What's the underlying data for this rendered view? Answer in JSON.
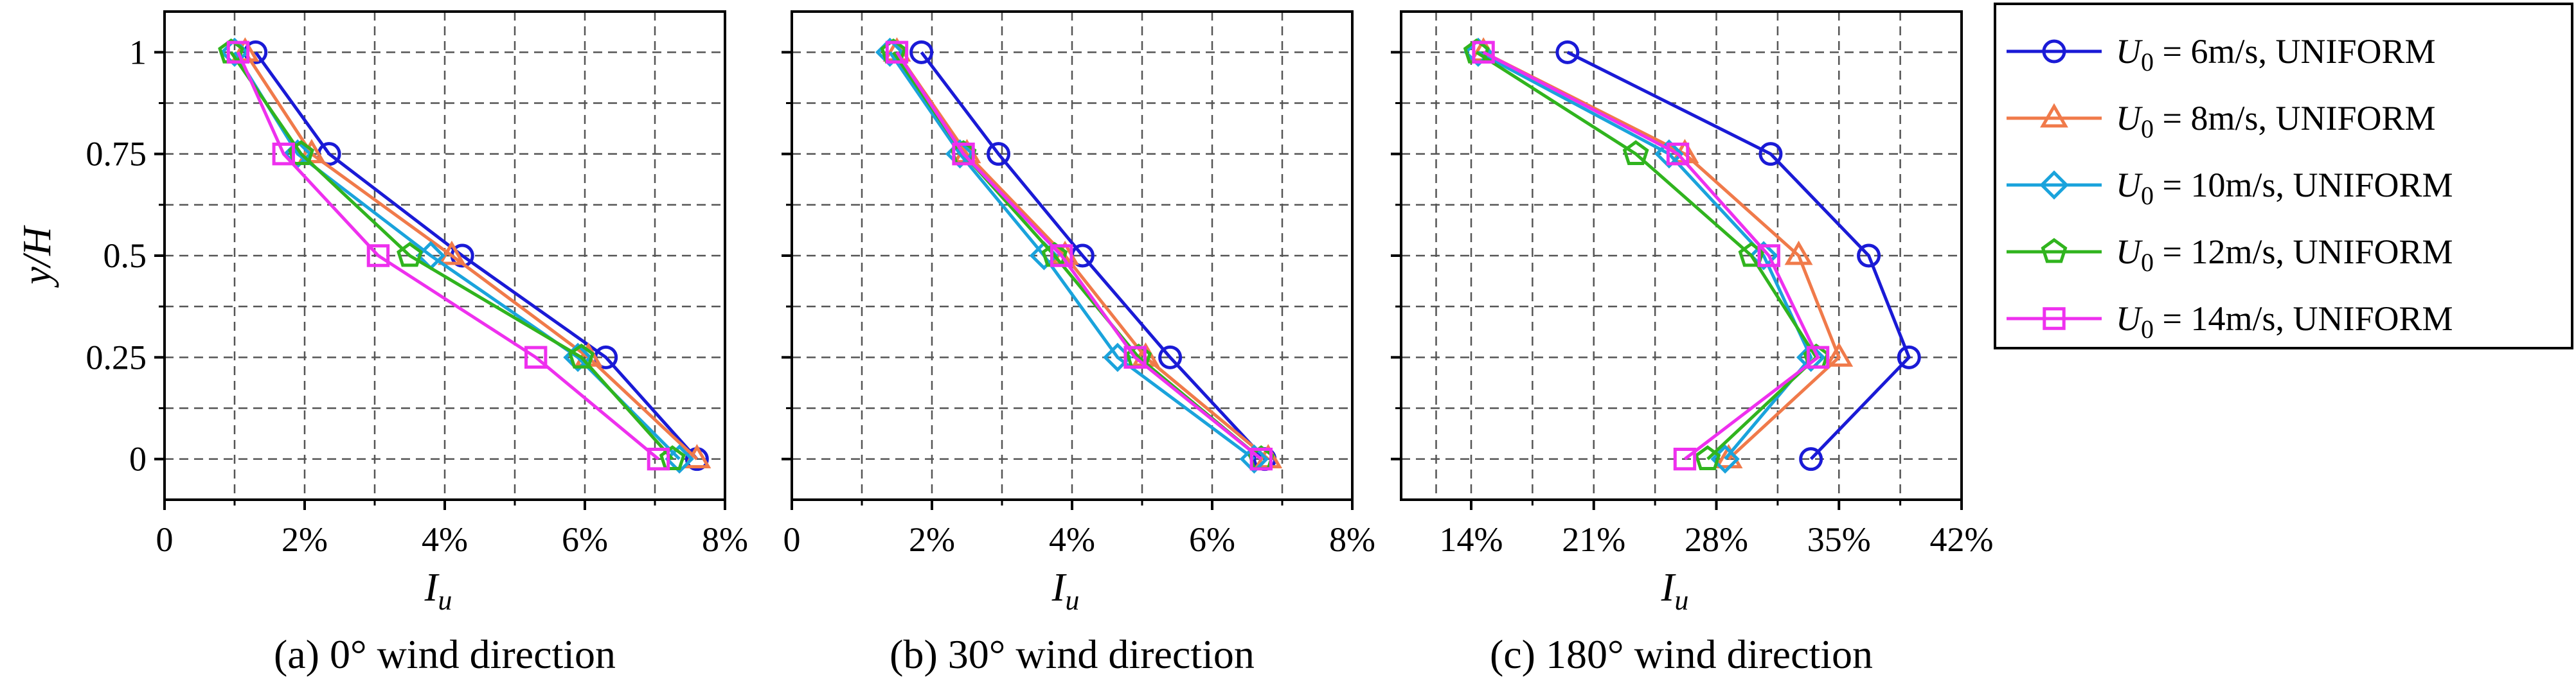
{
  "chart_data": [
    {
      "type": "line",
      "caption": "(a) 0° wind direction",
      "xlabel": "I",
      "xlabel_sub": "u",
      "ylabel": "y/H",
      "xlim": [
        0,
        0.08
      ],
      "ylim": [
        -0.1,
        1.1
      ],
      "xticks": [
        0,
        0.02,
        0.04,
        0.06,
        0.08
      ],
      "xtick_labels": [
        "0",
        "2%",
        "4%",
        "6%",
        "8%"
      ],
      "yticks": [
        0,
        0.25,
        0.5,
        0.75,
        1
      ],
      "ytick_labels": [
        "0",
        "0.25",
        "0.5",
        "0.75",
        "1"
      ],
      "grid": true,
      "series": [
        {
          "name": "6m/s",
          "y": [
            1,
            0.75,
            0.5,
            0.25,
            0
          ],
          "x": [
            0.013,
            0.0235,
            0.0425,
            0.063,
            0.076
          ]
        },
        {
          "name": "8m/s",
          "y": [
            1,
            0.75,
            0.5,
            0.25,
            0
          ],
          "x": [
            0.0115,
            0.021,
            0.041,
            0.0605,
            0.076
          ]
        },
        {
          "name": "10m/s",
          "y": [
            1,
            0.75,
            0.5,
            0.25,
            0
          ],
          "x": [
            0.01,
            0.019,
            0.038,
            0.059,
            0.0735
          ]
        },
        {
          "name": "12m/s",
          "y": [
            1,
            0.75,
            0.5,
            0.25,
            0
          ],
          "x": [
            0.0095,
            0.0195,
            0.035,
            0.0595,
            0.0725
          ]
        },
        {
          "name": "14m/s",
          "y": [
            1,
            0.75,
            0.5,
            0.25,
            0
          ],
          "x": [
            0.0105,
            0.017,
            0.0305,
            0.053,
            0.0705
          ]
        }
      ]
    },
    {
      "type": "line",
      "caption": "(b) 30° wind direction",
      "xlabel": "I",
      "xlabel_sub": "u",
      "ylabel": "y/H",
      "xlim": [
        0,
        0.08
      ],
      "ylim": [
        -0.1,
        1.1
      ],
      "xticks": [
        0,
        0.02,
        0.04,
        0.06,
        0.08
      ],
      "xtick_labels": [
        "0",
        "2%",
        "4%",
        "6%",
        "8%"
      ],
      "yticks": [
        0,
        0.25,
        0.5,
        0.75,
        1
      ],
      "ytick_labels": [],
      "grid": true,
      "series": [
        {
          "name": "6m/s",
          "y": [
            1,
            0.75,
            0.5,
            0.25,
            0
          ],
          "x": [
            0.0185,
            0.0295,
            0.0415,
            0.054,
            0.0675
          ]
        },
        {
          "name": "8m/s",
          "y": [
            1,
            0.75,
            0.5,
            0.25,
            0
          ],
          "x": [
            0.015,
            0.025,
            0.039,
            0.0505,
            0.068
          ]
        },
        {
          "name": "10m/s",
          "y": [
            1,
            0.75,
            0.5,
            0.25,
            0
          ],
          "x": [
            0.014,
            0.024,
            0.036,
            0.0465,
            0.066
          ]
        },
        {
          "name": "12m/s",
          "y": [
            1,
            0.75,
            0.5,
            0.25,
            0
          ],
          "x": [
            0.0145,
            0.0245,
            0.0375,
            0.0495,
            0.067
          ]
        },
        {
          "name": "14m/s",
          "y": [
            1,
            0.75,
            0.5,
            0.25,
            0
          ],
          "x": [
            0.015,
            0.0245,
            0.0385,
            0.049,
            0.067
          ]
        }
      ]
    },
    {
      "type": "line",
      "caption": "(c) 180° wind direction",
      "xlabel": "I",
      "xlabel_sub": "u",
      "ylabel": "y/H",
      "xlim": [
        0.1,
        0.42
      ],
      "ylim": [
        -0.1,
        1.1
      ],
      "xticks": [
        0.14,
        0.21,
        0.28,
        0.35,
        0.42
      ],
      "xtick_labels": [
        "14%",
        "21%",
        "28%",
        "35%",
        "42%"
      ],
      "yticks": [
        0,
        0.25,
        0.5,
        0.75,
        1
      ],
      "ytick_labels": [],
      "grid": true,
      "series": [
        {
          "name": "6m/s",
          "y": [
            1,
            0.75,
            0.5,
            0.25,
            0
          ],
          "x": [
            0.195,
            0.311,
            0.367,
            0.39,
            0.334
          ]
        },
        {
          "name": "8m/s",
          "y": [
            1,
            0.75,
            0.5,
            0.25,
            0
          ],
          "x": [
            0.147,
            0.262,
            0.327,
            0.35,
            0.287
          ]
        },
        {
          "name": "10m/s",
          "y": [
            1,
            0.75,
            0.5,
            0.25,
            0
          ],
          "x": [
            0.144,
            0.253,
            0.307,
            0.334,
            0.285
          ]
        },
        {
          "name": "12m/s",
          "y": [
            1,
            0.75,
            0.5,
            0.25,
            0
          ],
          "x": [
            0.143,
            0.234,
            0.3,
            0.337,
            0.275
          ]
        },
        {
          "name": "14m/s",
          "y": [
            1,
            0.75,
            0.5,
            0.25,
            0
          ],
          "x": [
            0.147,
            0.258,
            0.31,
            0.338,
            0.262
          ]
        }
      ]
    }
  ],
  "legend": {
    "entries": [
      {
        "var": "U",
        "sub": "0",
        "rest": " = 6m/s, UNIFORM",
        "marker": "circle",
        "color": "#1a1ad6"
      },
      {
        "var": "U",
        "sub": "0",
        "rest": " = 8m/s, UNIFORM",
        "marker": "triangle",
        "color": "#f07a4a"
      },
      {
        "var": "U",
        "sub": "0",
        "rest": " = 10m/s, UNIFORM",
        "marker": "diamond",
        "color": "#1aa3dc"
      },
      {
        "var": "U",
        "sub": "0",
        "rest": " = 12m/s, UNIFORM",
        "marker": "pentagon",
        "color": "#30b41e"
      },
      {
        "var": "U",
        "sub": "0",
        "rest": " = 14m/s, UNIFORM",
        "marker": "square",
        "color": "#ee30ee"
      }
    ]
  }
}
